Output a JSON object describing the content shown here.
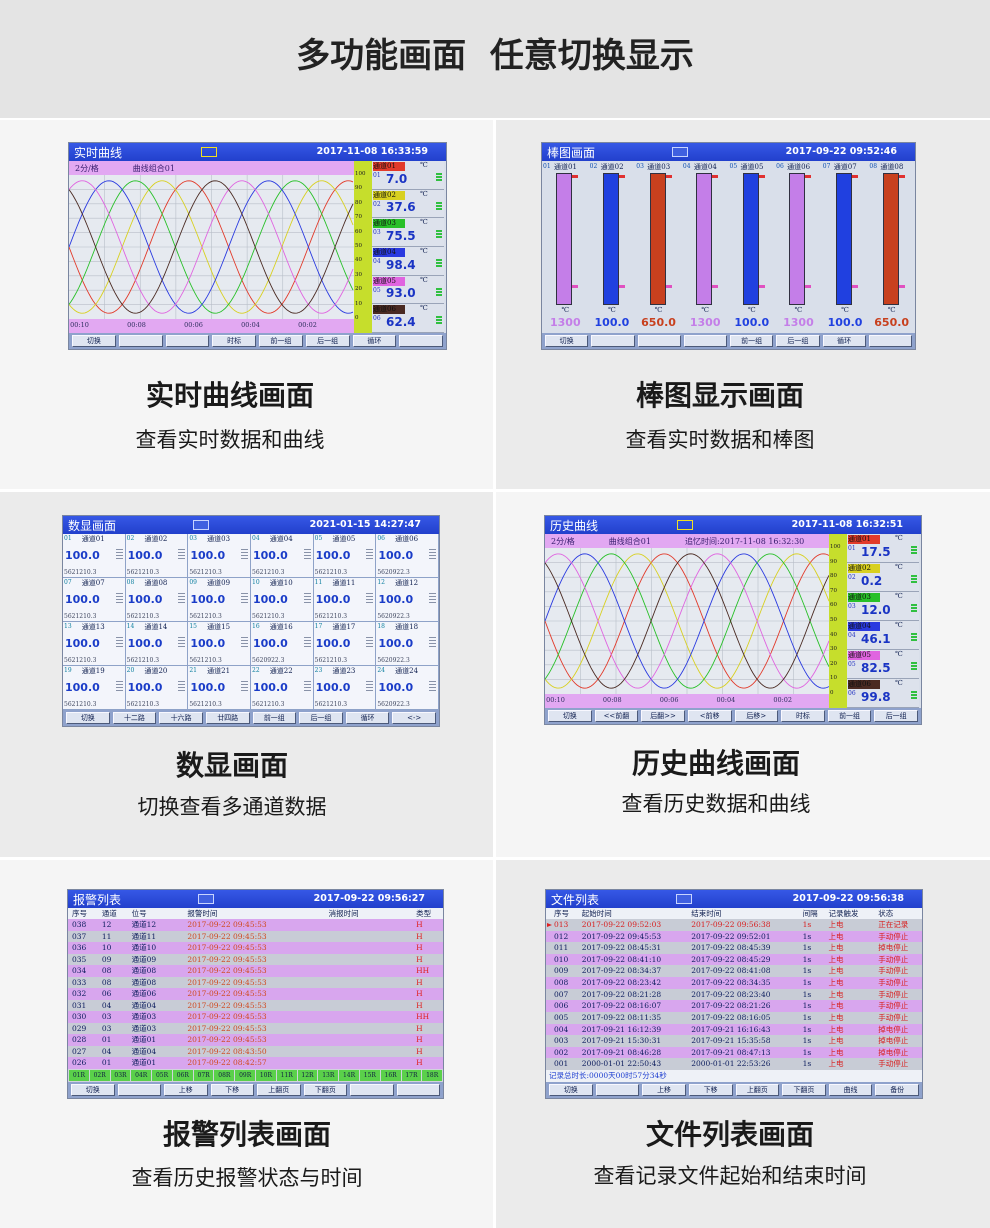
{
  "header": {
    "title": "多功能画面  任意切换显示"
  },
  "panels": [
    {
      "caption": "实时曲线画面",
      "subtitle": "查看实时数据和曲线",
      "screen": {
        "title": "实时曲线",
        "time": "2017-11-08 16:33:59",
        "subbar": [
          "2分/格",
          "曲线组合01"
        ],
        "scale": [
          "100",
          "90",
          "80",
          "70",
          "60",
          "50",
          "40",
          "30",
          "20",
          "10",
          "0"
        ],
        "time_labels": [
          "00:10",
          "00:08",
          "00:06",
          "00:04",
          "00:02"
        ],
        "channels": [
          {
            "num": "01",
            "name": "通道01",
            "unit": "℃",
            "value": "7.0",
            "color": "#e23a2a"
          },
          {
            "num": "02",
            "name": "通道02",
            "unit": "℃",
            "value": "37.6",
            "color": "#d8d020"
          },
          {
            "num": "03",
            "name": "通道03",
            "unit": "℃",
            "value": "75.5",
            "color": "#28c028"
          },
          {
            "num": "04",
            "name": "通道04",
            "unit": "℃",
            "value": "98.4",
            "color": "#2a3ae0"
          },
          {
            "num": "05",
            "name": "通道05",
            "unit": "℃",
            "value": "93.0",
            "color": "#e064e0"
          },
          {
            "num": "06",
            "name": "通道06",
            "unit": "℃",
            "value": "62.4",
            "color": "#4a2a22"
          }
        ],
        "buttons": [
          "切换",
          null,
          null,
          "时标",
          "前一组",
          "后一组",
          "循环",
          null
        ]
      }
    },
    {
      "caption": "棒图显示画面",
      "subtitle": "查看实时数据和棒图",
      "screen": {
        "title": "棒图画面",
        "time": "2017-09-22 09:52:46",
        "bars": [
          {
            "num": "01",
            "name": "通道01",
            "unit": "℃",
            "value": "1300",
            "color": "#c47ee8"
          },
          {
            "num": "02",
            "name": "通道02",
            "unit": "℃",
            "value": "100.0",
            "color": "#2040e0"
          },
          {
            "num": "03",
            "name": "通道03",
            "unit": "℃",
            "value": "650.0",
            "color": "#c8401e"
          },
          {
            "num": "04",
            "name": "通道04",
            "unit": "℃",
            "value": "1300",
            "color": "#c47ee8"
          },
          {
            "num": "05",
            "name": "通道05",
            "unit": "℃",
            "value": "100.0",
            "color": "#2040e0"
          },
          {
            "num": "06",
            "name": "通道06",
            "unit": "℃",
            "value": "1300",
            "color": "#c47ee8"
          },
          {
            "num": "07",
            "name": "通道07",
            "unit": "℃",
            "value": "100.0",
            "color": "#2040e0"
          },
          {
            "num": "08",
            "name": "通道08",
            "unit": "℃",
            "value": "650.0",
            "color": "#c8401e"
          }
        ],
        "buttons": [
          "切换",
          null,
          null,
          null,
          "前一组",
          "后一组",
          "循环",
          null
        ]
      }
    },
    {
      "caption": "数显画面",
      "subtitle": "切换查看多通道数据",
      "screen": {
        "title": "数显画面",
        "time": "2021-01-15 14:27:47",
        "cells": [
          {
            "num": "01",
            "name": "通道01",
            "value": "100.0",
            "total": "5621210.3"
          },
          {
            "num": "02",
            "name": "通道02",
            "value": "100.0",
            "total": "5621210.3"
          },
          {
            "num": "03",
            "name": "通道03",
            "value": "100.0",
            "total": "5621210.3"
          },
          {
            "num": "04",
            "name": "通道04",
            "value": "100.0",
            "total": "5621210.3"
          },
          {
            "num": "05",
            "name": "通道05",
            "value": "100.0",
            "total": "5621210.3"
          },
          {
            "num": "06",
            "name": "通道06",
            "value": "100.0",
            "total": "5620922.3"
          },
          {
            "num": "07",
            "name": "通道07",
            "value": "100.0",
            "total": "5621210.3"
          },
          {
            "num": "08",
            "name": "通道08",
            "value": "100.0",
            "total": "5621210.3"
          },
          {
            "num": "09",
            "name": "通道09",
            "value": "100.0",
            "total": "5621210.3"
          },
          {
            "num": "10",
            "name": "通道10",
            "value": "100.0",
            "total": "5621210.3"
          },
          {
            "num": "11",
            "name": "通道11",
            "value": "100.0",
            "total": "5621210.3"
          },
          {
            "num": "12",
            "name": "通道12",
            "value": "100.0",
            "total": "5620922.3"
          },
          {
            "num": "13",
            "name": "通道13",
            "value": "100.0",
            "total": "5621210.3"
          },
          {
            "num": "14",
            "name": "通道14",
            "value": "100.0",
            "total": "5621210.3"
          },
          {
            "num": "15",
            "name": "通道15",
            "value": "100.0",
            "total": "5621210.3"
          },
          {
            "num": "16",
            "name": "通道16",
            "value": "100.0",
            "total": "5620922.3"
          },
          {
            "num": "17",
            "name": "通道17",
            "value": "100.0",
            "total": "5621210.3"
          },
          {
            "num": "18",
            "name": "通道18",
            "value": "100.0",
            "total": "5620922.3"
          },
          {
            "num": "19",
            "name": "通道19",
            "value": "100.0",
            "total": "5621210.3"
          },
          {
            "num": "20",
            "name": "通道20",
            "value": "100.0",
            "total": "5621210.3"
          },
          {
            "num": "21",
            "name": "通道21",
            "value": "100.0",
            "total": "5621210.3"
          },
          {
            "num": "22",
            "name": "通道22",
            "value": "100.0",
            "total": "5621210.3"
          },
          {
            "num": "23",
            "name": "通道23",
            "value": "100.0",
            "total": "5621210.3"
          },
          {
            "num": "24",
            "name": "通道24",
            "value": "100.0",
            "total": "5620922.3"
          }
        ],
        "buttons": [
          "切换",
          "十二路",
          "十六路",
          "廿四路",
          "前一组",
          "后一组",
          "循环",
          "<->"
        ]
      }
    },
    {
      "caption": "历史曲线画面",
      "subtitle": "查看历史数据和曲线",
      "screen": {
        "title": "历史曲线",
        "time": "2017-11-08 16:32:51",
        "subbar": [
          "2分/格",
          "曲线组合01",
          "追忆时间:2017-11-08 16:32:30"
        ],
        "scale": [
          "100",
          "90",
          "80",
          "70",
          "60",
          "50",
          "40",
          "30",
          "20",
          "10",
          "0"
        ],
        "time_labels": [
          "00:10",
          "00:08",
          "00:06",
          "00:04",
          "00:02"
        ],
        "channels": [
          {
            "num": "01",
            "name": "通道01",
            "unit": "℃",
            "value": "17.5",
            "color": "#e23a2a"
          },
          {
            "num": "02",
            "name": "通道02",
            "unit": "℃",
            "value": "0.2",
            "color": "#d8d020"
          },
          {
            "num": "03",
            "name": "通道03",
            "unit": "℃",
            "value": "12.0",
            "color": "#28c028"
          },
          {
            "num": "04",
            "name": "通道04",
            "unit": "℃",
            "value": "46.1",
            "color": "#2a3ae0"
          },
          {
            "num": "05",
            "name": "通道05",
            "unit": "℃",
            "value": "82.5",
            "color": "#e064e0"
          },
          {
            "num": "06",
            "name": "通道06",
            "unit": "℃",
            "value": "99.8",
            "color": "#4a2a22"
          }
        ],
        "buttons": [
          "切换",
          "<<前翻",
          "后翻>>",
          "<前移",
          "后移>",
          "时标",
          "前一组",
          "后一组"
        ]
      }
    },
    {
      "caption": "报警列表画面",
      "subtitle": "查看历史报警状态与时间",
      "screen": {
        "title": "报警列表",
        "time": "2017-09-22 09:56:27",
        "alarm_table": {
          "headers": [
            "序号",
            "通道",
            "位号",
            "报警时间",
            "消报时间",
            "类型"
          ],
          "rows": [
            [
              "038",
              "12",
              "通道12",
              "2017-09-22 09:45:53",
              "H"
            ],
            [
              "037",
              "11",
              "通道11",
              "2017-09-22 09:45:53",
              "H"
            ],
            [
              "036",
              "10",
              "通道10",
              "2017-09-22 09:45:53",
              "H"
            ],
            [
              "035",
              "09",
              "通道09",
              "2017-09-22 09:45:53",
              "H"
            ],
            [
              "034",
              "08",
              "通道08",
              "2017-09-22 09:45:53",
              "HH"
            ],
            [
              "033",
              "08",
              "通道08",
              "2017-09-22 09:45:53",
              "H"
            ],
            [
              "032",
              "06",
              "通道06",
              "2017-09-22 09:45:53",
              "H"
            ],
            [
              "031",
              "04",
              "通道04",
              "2017-09-22 09:45:53",
              "H"
            ],
            [
              "030",
              "03",
              "通道03",
              "2017-09-22 09:45:53",
              "HH"
            ],
            [
              "029",
              "03",
              "通道03",
              "2017-09-22 09:45:53",
              "H"
            ],
            [
              "028",
              "01",
              "通道01",
              "2017-09-22 09:45:53",
              "H"
            ],
            [
              "027",
              "04",
              "通道04",
              "2017-09-22 08:43:50",
              "H"
            ],
            [
              "026",
              "01",
              "通道01",
              "2017-09-22 08:42:57",
              "H"
            ]
          ],
          "codes": [
            "01R",
            "02R",
            "03R",
            "04R",
            "05R",
            "06R",
            "07R",
            "08R",
            "09R",
            "10R",
            "11R",
            "12R",
            "13R",
            "14R",
            "15R",
            "16R",
            "17R",
            "18R"
          ]
        },
        "buttons": [
          "切换",
          null,
          "上移",
          "下移",
          "上翻页",
          "下翻页",
          null,
          null
        ]
      }
    },
    {
      "caption": "文件列表画面",
      "subtitle": "查看记录文件起始和结束时间",
      "screen": {
        "title": "文件列表",
        "time": "2017-09-22 09:56:38",
        "file_table": {
          "headers": [
            "序号",
            "起始时间",
            "结束时间",
            "间隔",
            "记录触发",
            "状态"
          ],
          "rows": [
            [
              "013",
              "2017-09-22 09:52:03",
              "2017-09-22 09:56:38",
              "1s",
              "上电",
              "正在记录"
            ],
            [
              "012",
              "2017-09-22 09:45:53",
              "2017-09-22 09:52:01",
              "1s",
              "上电",
              "手动停止"
            ],
            [
              "011",
              "2017-09-22 08:45:31",
              "2017-09-22 08:45:39",
              "1s",
              "上电",
              "掉电停止"
            ],
            [
              "010",
              "2017-09-22 08:41:10",
              "2017-09-22 08:45:29",
              "1s",
              "上电",
              "手动停止"
            ],
            [
              "009",
              "2017-09-22 08:34:37",
              "2017-09-22 08:41:08",
              "1s",
              "上电",
              "手动停止"
            ],
            [
              "008",
              "2017-09-22 08:23:42",
              "2017-09-22 08:34:35",
              "1s",
              "上电",
              "手动停止"
            ],
            [
              "007",
              "2017-09-22 08:21:28",
              "2017-09-22 08:23:40",
              "1s",
              "上电",
              "手动停止"
            ],
            [
              "006",
              "2017-09-22 08:16:07",
              "2017-09-22 08:21:26",
              "1s",
              "上电",
              "手动停止"
            ],
            [
              "005",
              "2017-09-22 08:11:35",
              "2017-09-22 08:16:05",
              "1s",
              "上电",
              "手动停止"
            ],
            [
              "004",
              "2017-09-21 16:12:39",
              "2017-09-21 16:16:43",
              "1s",
              "上电",
              "掉电停止"
            ],
            [
              "003",
              "2017-09-21 15:30:31",
              "2017-09-21 15:35:58",
              "1s",
              "上电",
              "掉电停止"
            ],
            [
              "002",
              "2017-09-21 08:46:28",
              "2017-09-21 08:47:13",
              "1s",
              "上电",
              "掉电停止"
            ],
            [
              "001",
              "2000-01-01 22:50:43",
              "2000-01-01 22:53:26",
              "1s",
              "上电",
              "手动停止"
            ]
          ],
          "footer": "记录总时长:0000天00时57分34秒"
        },
        "buttons": [
          "切换",
          null,
          "上移",
          "下移",
          "上翻页",
          "下翻页",
          "曲线",
          "备份"
        ]
      }
    }
  ]
}
